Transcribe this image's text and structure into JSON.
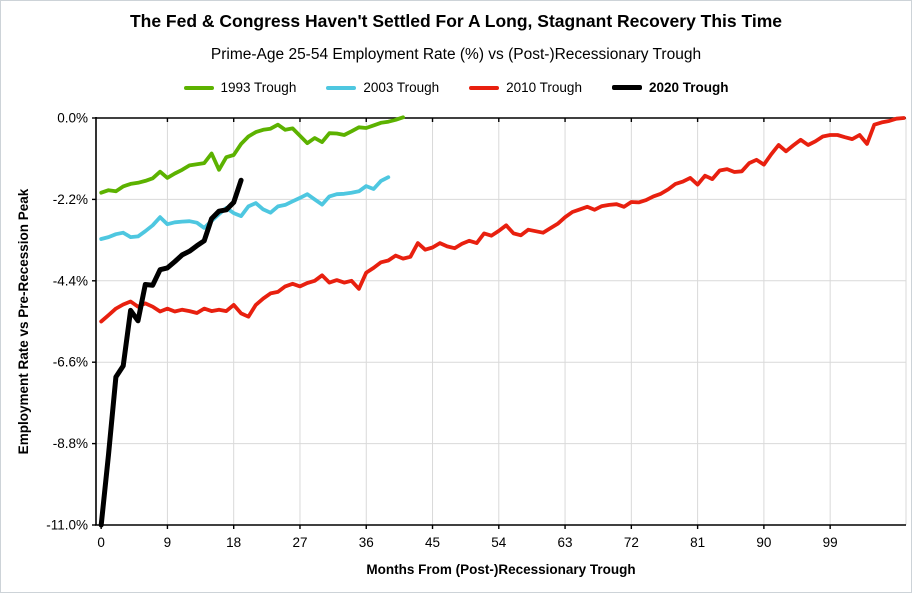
{
  "title": "The Fed & Congress Haven't Settled For A Long, Stagnant Recovery This Time",
  "subtitle": "Prime-Age 25-54 Employment Rate (%) vs (Post-)Recessionary Trough",
  "chart_data": {
    "type": "line",
    "title": "The Fed & Congress Haven't Settled For A Long, Stagnant Recovery This Time",
    "subtitle": "Prime-Age 25-54 Employment Rate (%) vs (Post-)Recessionary Trough",
    "xlabel": "Months From (Post-)Recessionary Trough",
    "ylabel": "Employment Rate vs Pre-Recession Peak",
    "x_unit_note": "x = months since trough (series index)",
    "xlim": [
      0,
      110
    ],
    "ylim": [
      -11.0,
      0.0
    ],
    "x_ticks": [
      0,
      9,
      18,
      27,
      36,
      45,
      54,
      63,
      72,
      81,
      90,
      99
    ],
    "y_ticks": [
      {
        "value": 0.0,
        "label": "0.0%"
      },
      {
        "value": -2.2,
        "label": "-2.2%"
      },
      {
        "value": -4.4,
        "label": "-4.4%"
      },
      {
        "value": -6.6,
        "label": "-6.6%"
      },
      {
        "value": -8.8,
        "label": "-8.8%"
      },
      {
        "value": -11.0,
        "label": "-11.0%"
      }
    ],
    "grid": true,
    "legend_position": "top",
    "colors": {
      "grid": "#d9d9d9",
      "axis": "#000000",
      "right_border": "#d9d9d9",
      "series_1993": "#5cb200",
      "series_2003": "#4ec7e0",
      "series_2010": "#e8200f",
      "series_2020": "#000000"
    },
    "series": [
      {
        "name": "1993 Trough",
        "color": "#5cb200",
        "stroke_width": 3.8,
        "bold_label": false,
        "values": [
          -2.02,
          -1.95,
          -1.98,
          -1.85,
          -1.78,
          -1.75,
          -1.7,
          -1.63,
          -1.45,
          -1.62,
          -1.5,
          -1.4,
          -1.28,
          -1.25,
          -1.22,
          -0.96,
          -1.4,
          -1.06,
          -1.0,
          -0.7,
          -0.5,
          -0.38,
          -0.32,
          -0.29,
          -0.18,
          -0.32,
          -0.28,
          -0.48,
          -0.68,
          -0.54,
          -0.65,
          -0.41,
          -0.42,
          -0.46,
          -0.36,
          -0.25,
          -0.27,
          -0.2,
          -0.13,
          -0.1,
          -0.05,
          0.02
        ]
      },
      {
        "name": "2003 Trough",
        "color": "#4ec7e0",
        "stroke_width": 3.8,
        "bold_label": false,
        "values": [
          -3.27,
          -3.22,
          -3.14,
          -3.1,
          -3.22,
          -3.2,
          -3.06,
          -2.9,
          -2.68,
          -2.87,
          -2.82,
          -2.8,
          -2.79,
          -2.83,
          -2.97,
          -2.78,
          -2.6,
          -2.43,
          -2.57,
          -2.65,
          -2.39,
          -2.3,
          -2.47,
          -2.56,
          -2.39,
          -2.35,
          -2.25,
          -2.16,
          -2.06,
          -2.2,
          -2.34,
          -2.12,
          -2.06,
          -2.05,
          -2.02,
          -1.98,
          -1.84,
          -1.92,
          -1.7,
          -1.6
        ]
      },
      {
        "name": "2010 Trough",
        "color": "#e8200f",
        "stroke_width": 3.8,
        "bold_label": false,
        "values": [
          -5.5,
          -5.33,
          -5.15,
          -5.04,
          -4.96,
          -5.1,
          -5.01,
          -5.1,
          -5.23,
          -5.15,
          -5.23,
          -5.18,
          -5.22,
          -5.27,
          -5.15,
          -5.22,
          -5.18,
          -5.22,
          -5.05,
          -5.28,
          -5.37,
          -5.05,
          -4.88,
          -4.74,
          -4.7,
          -4.55,
          -4.48,
          -4.55,
          -4.46,
          -4.4,
          -4.25,
          -4.45,
          -4.38,
          -4.45,
          -4.4,
          -4.62,
          -4.18,
          -4.05,
          -3.9,
          -3.85,
          -3.72,
          -3.8,
          -3.75,
          -3.38,
          -3.56,
          -3.5,
          -3.38,
          -3.47,
          -3.52,
          -3.4,
          -3.32,
          -3.38,
          -3.12,
          -3.18,
          -3.05,
          -2.9,
          -3.12,
          -3.17,
          -3.02,
          -3.06,
          -3.1,
          -2.98,
          -2.86,
          -2.68,
          -2.54,
          -2.47,
          -2.4,
          -2.48,
          -2.38,
          -2.35,
          -2.33,
          -2.4,
          -2.27,
          -2.28,
          -2.22,
          -2.12,
          -2.05,
          -1.93,
          -1.78,
          -1.72,
          -1.62,
          -1.8,
          -1.56,
          -1.65,
          -1.42,
          -1.38,
          -1.46,
          -1.44,
          -1.22,
          -1.13,
          -1.26,
          -0.98,
          -0.73,
          -0.9,
          -0.74,
          -0.59,
          -0.73,
          -0.63,
          -0.5,
          -0.46,
          -0.46,
          -0.52,
          -0.57,
          -0.46,
          -0.7,
          -0.18,
          -0.12,
          -0.08,
          -0.02,
          0.0
        ]
      },
      {
        "name": "2020 Trough",
        "color": "#000000",
        "stroke_width": 5,
        "bold_label": true,
        "values": [
          -11.0,
          -9.1,
          -7.0,
          -6.7,
          -5.2,
          -5.48,
          -4.5,
          -4.52,
          -4.1,
          -4.05,
          -3.88,
          -3.7,
          -3.6,
          -3.45,
          -3.32,
          -2.72,
          -2.52,
          -2.48,
          -2.28,
          -1.68
        ]
      }
    ]
  }
}
